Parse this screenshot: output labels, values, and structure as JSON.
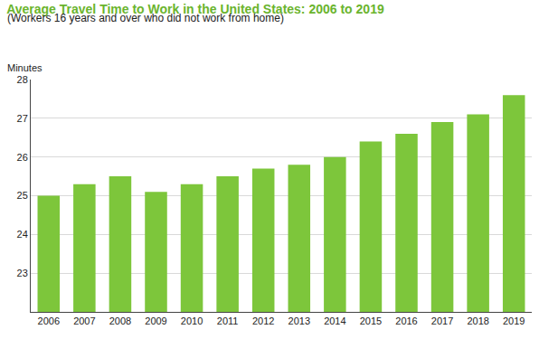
{
  "chart_data": {
    "type": "bar",
    "title": "Average Travel Time to Work in the United States: 2006 to 2019",
    "subtitle": "(Workers 16 years and over who did not work from home)",
    "ylabel": "Minutes",
    "categories": [
      "2006",
      "2007",
      "2008",
      "2009",
      "2010",
      "2011",
      "2012",
      "2013",
      "2014",
      "2015",
      "2016",
      "2017",
      "2018",
      "2019"
    ],
    "values": [
      25.0,
      25.3,
      25.5,
      25.1,
      25.3,
      25.5,
      25.7,
      25.8,
      26.0,
      26.4,
      26.6,
      26.9,
      27.1,
      27.6
    ],
    "color": "#7dc63b",
    "ylim": [
      22,
      28
    ],
    "yticks": [
      23,
      24,
      25,
      26,
      27,
      28
    ],
    "grid": true
  }
}
